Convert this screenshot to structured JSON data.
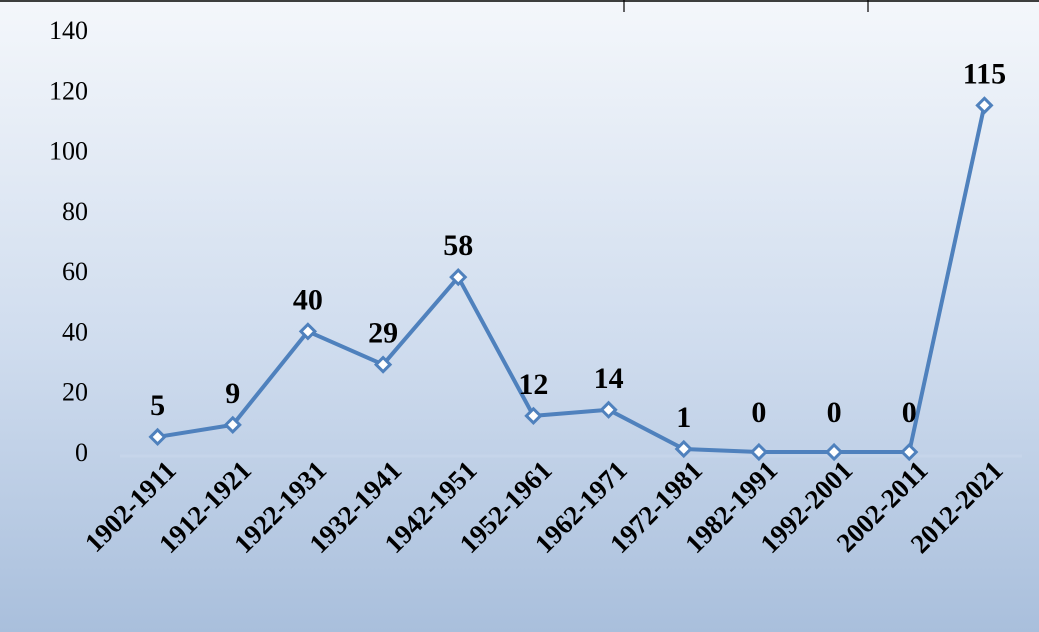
{
  "chart_data": {
    "type": "line",
    "title": "",
    "xlabel": "",
    "ylabel": "",
    "categories": [
      "1902-1911",
      "1912-1921",
      "1922-1931",
      "1932-1941",
      "1942-1951",
      "1952-1961",
      "1962-1971",
      "1972-1981",
      "1982-1991",
      "1992-2001",
      "2002-2011",
      "2012-2021"
    ],
    "series": [
      {
        "values": [
          5,
          9,
          40,
          29,
          58,
          12,
          14,
          1,
          0,
          0,
          0,
          115
        ]
      }
    ],
    "data_labels": [
      "5",
      "9",
      "40",
      "29",
      "58",
      "12",
      "14",
      "1",
      "0",
      "0",
      "0",
      "115"
    ],
    "yticks": [
      0,
      20,
      40,
      60,
      80,
      100,
      120,
      140
    ],
    "ylim": [
      0,
      140
    ],
    "grid": false,
    "legend": "none",
    "colors": {
      "line": "#4f81bd",
      "marker_fill": "#ffffff",
      "background_top": "#f4f7fb",
      "background_bottom": "#a9bfdc"
    }
  }
}
